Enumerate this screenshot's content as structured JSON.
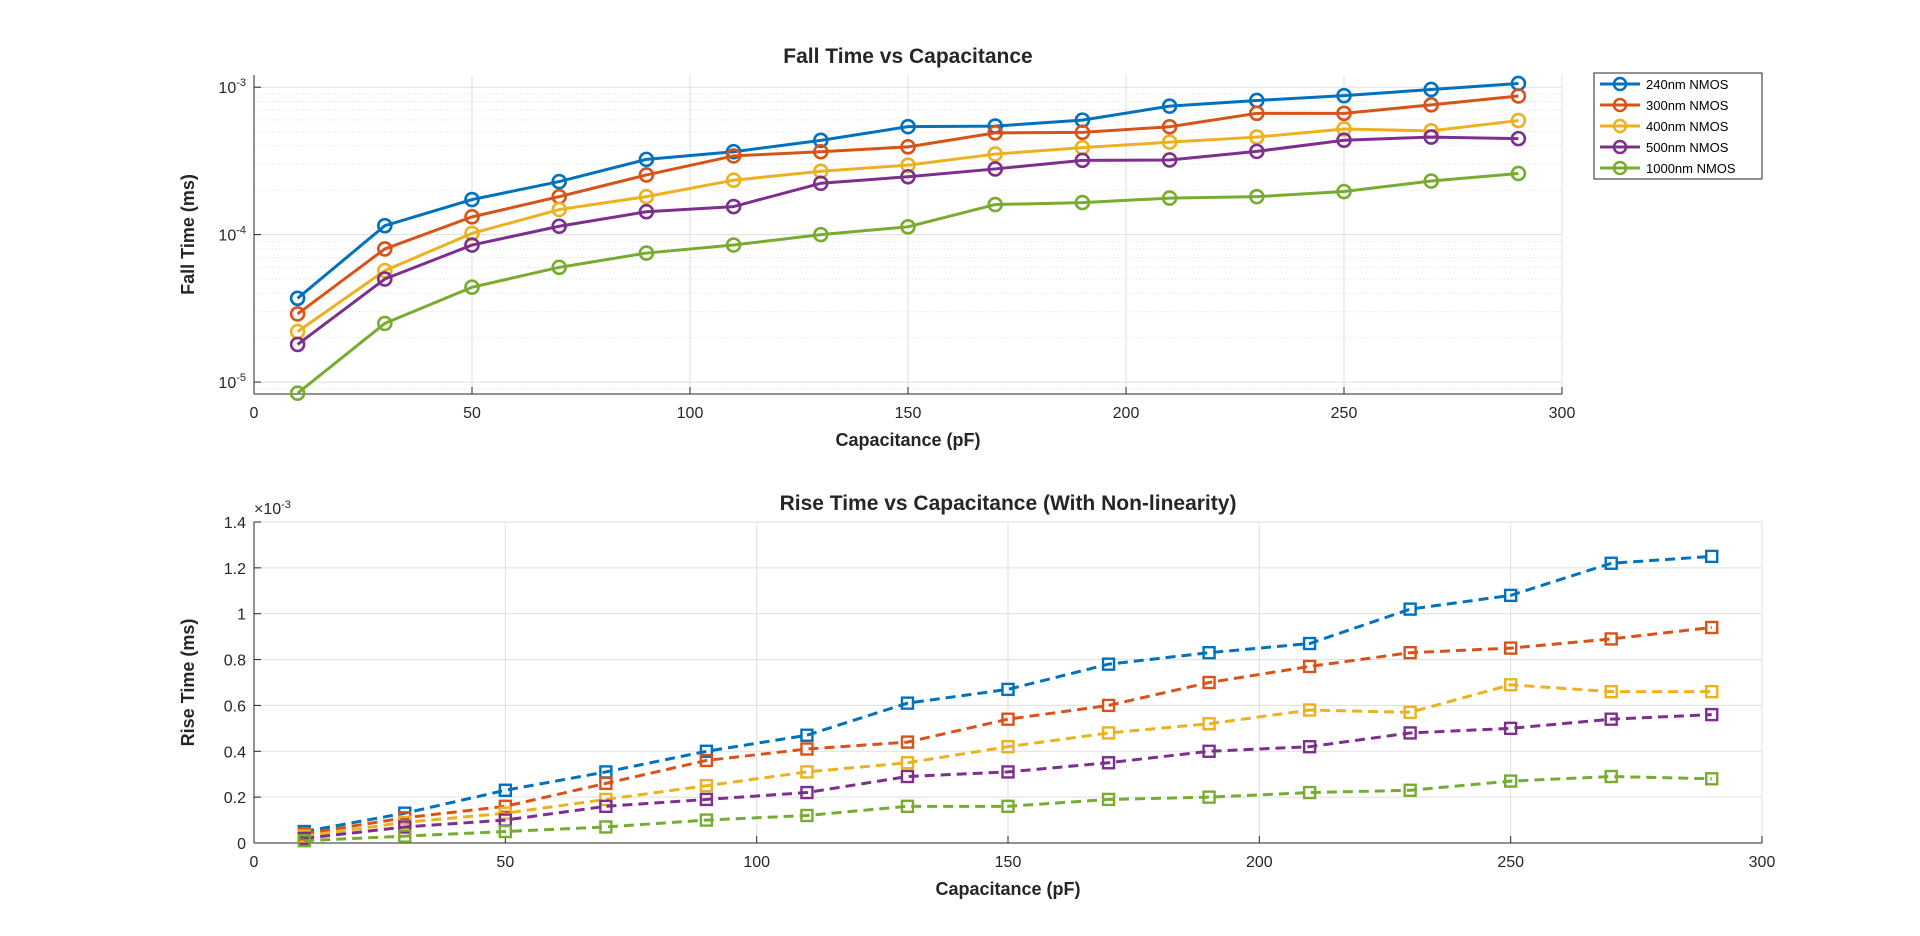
{
  "chart_data": [
    {
      "type": "line",
      "title": "Fall Time vs Capacitance",
      "xlabel": "Capacitance (pF)",
      "ylabel": "Fall Time (ms)",
      "xlim": [
        0,
        300
      ],
      "ylim": [
        8.3e-06,
        0.00121
      ],
      "yscale": "log",
      "xticks": [
        "0",
        "50",
        "100",
        "150",
        "200",
        "250",
        "300"
      ],
      "yticks": [
        {
          "value": 1e-05,
          "base": "10",
          "exp": "-5"
        },
        {
          "value": 0.0001,
          "base": "10",
          "exp": "-4"
        },
        {
          "value": 0.001,
          "base": "10",
          "exp": "-3"
        }
      ],
      "grid": true,
      "minor_grid": true,
      "legend_position": "outside-top-right",
      "marker": "circle",
      "line_style": "solid",
      "x": [
        10,
        30,
        50,
        70,
        90,
        110,
        130,
        150,
        170,
        190,
        210,
        230,
        250,
        270,
        290
      ],
      "series": [
        {
          "name": "240nm NMOS",
          "color": "#0072BD",
          "values": [
            3.7e-05,
            0.000115,
            0.000173,
            0.000229,
            0.000324,
            0.000365,
            0.000436,
            0.00054,
            0.000545,
            0.000598,
            0.000744,
            0.000813,
            0.000876,
            0.000965,
            0.00106
          ]
        },
        {
          "name": "300nm NMOS",
          "color": "#D95319",
          "values": [
            2.9e-05,
            8e-05,
            0.000132,
            0.000181,
            0.000254,
            0.000342,
            0.000365,
            0.000394,
            0.00049,
            0.000494,
            0.000539,
            0.000665,
            0.000665,
            0.000759,
            0.000872
          ]
        },
        {
          "name": "400nm NMOS",
          "color": "#EDB120",
          "values": [
            2.2e-05,
            5.7e-05,
            0.000102,
            0.000148,
            0.000181,
            0.000234,
            0.000269,
            0.000296,
            0.000352,
            0.000389,
            0.000424,
            0.000459,
            0.000521,
            0.000506,
            0.000594
          ]
        },
        {
          "name": "500nm NMOS",
          "color": "#7E2F8E",
          "values": [
            1.8e-05,
            5e-05,
            8.5e-05,
            0.000114,
            0.000143,
            0.000155,
            0.000223,
            0.000247,
            0.000279,
            0.000319,
            0.000321,
            0.000367,
            0.000437,
            0.000459,
            0.000448
          ]
        },
        {
          "name": "1000nm NMOS",
          "color": "#77AC30",
          "values": [
            8.4e-06,
            2.5e-05,
            4.4e-05,
            6e-05,
            7.5e-05,
            8.5e-05,
            0.0001,
            0.000113,
            0.00016,
            0.000165,
            0.000177,
            0.000181,
            0.000196,
            0.000231,
            0.00026
          ]
        }
      ]
    },
    {
      "type": "line",
      "title": "Rise Time vs Capacitance (With Non-linearity)",
      "xlabel": "Capacitance (pF)",
      "ylabel": "Rise Time (ms)",
      "xlim": [
        0,
        300
      ],
      "ylim": [
        0,
        1.4
      ],
      "yscale": "linear",
      "exponent_label": "×10",
      "exponent_value": "-3",
      "xticks": [
        "0",
        "50",
        "100",
        "150",
        "200",
        "250",
        "300"
      ],
      "yticks": [
        "0",
        "0.2",
        "0.4",
        "0.6",
        "0.8",
        "1",
        "1.2",
        "1.4"
      ],
      "grid": true,
      "legend_position": "none",
      "marker": "square",
      "line_style": "dashed",
      "x": [
        10,
        30,
        50,
        70,
        90,
        110,
        130,
        150,
        170,
        190,
        210,
        230,
        250,
        270,
        290
      ],
      "series": [
        {
          "color": "#0072BD",
          "values": [
            0.05,
            0.13,
            0.23,
            0.31,
            0.4,
            0.47,
            0.61,
            0.67,
            0.78,
            0.83,
            0.87,
            1.02,
            1.08,
            1.22,
            1.25
          ]
        },
        {
          "color": "#D95319",
          "values": [
            0.04,
            0.11,
            0.16,
            0.26,
            0.36,
            0.41,
            0.44,
            0.54,
            0.6,
            0.7,
            0.77,
            0.83,
            0.85,
            0.89,
            0.94
          ]
        },
        {
          "color": "#EDB120",
          "values": [
            0.03,
            0.09,
            0.13,
            0.19,
            0.25,
            0.31,
            0.35,
            0.42,
            0.48,
            0.52,
            0.58,
            0.57,
            0.69,
            0.66,
            0.66
          ]
        },
        {
          "color": "#7E2F8E",
          "values": [
            0.02,
            0.07,
            0.1,
            0.16,
            0.19,
            0.22,
            0.29,
            0.31,
            0.35,
            0.4,
            0.42,
            0.48,
            0.5,
            0.54,
            0.56
          ]
        },
        {
          "color": "#77AC30",
          "values": [
            0.01,
            0.03,
            0.05,
            0.07,
            0.1,
            0.12,
            0.16,
            0.16,
            0.19,
            0.2,
            0.22,
            0.23,
            0.27,
            0.29,
            0.28
          ]
        }
      ]
    }
  ]
}
